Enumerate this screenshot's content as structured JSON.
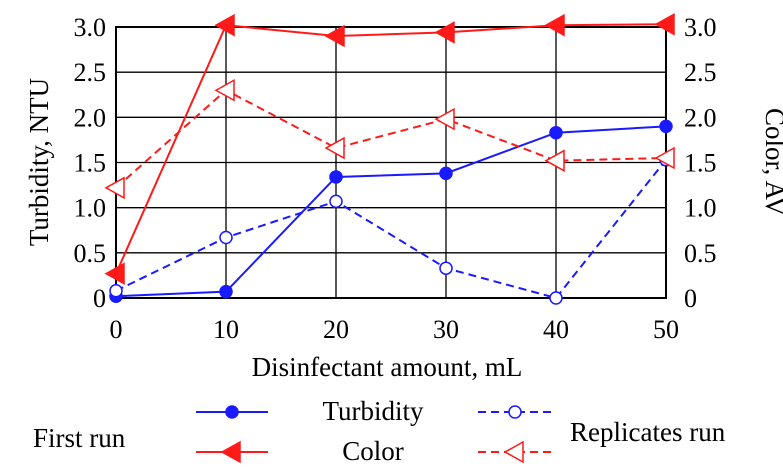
{
  "chart_data": {
    "type": "line",
    "xlabel": "Disinfectant amount, mL",
    "ylabel_left": "Turbidity, NTU",
    "ylabel_right": "Color, AV",
    "x": [
      0,
      10,
      20,
      30,
      40,
      50
    ],
    "x_ticks": [
      "0",
      "10",
      "20",
      "30",
      "40",
      "50"
    ],
    "xlim": [
      0,
      50
    ],
    "y_ticks": [
      "0",
      "0.5",
      "1.0",
      "1.5",
      "2.0",
      "2.5",
      "3.0"
    ],
    "y_tick_values": [
      0,
      0.5,
      1.0,
      1.5,
      2.0,
      2.5,
      3.0
    ],
    "ylim_left": [
      0,
      3.0
    ],
    "ylim_right": [
      0,
      3.0
    ],
    "grid": true,
    "series": [
      {
        "id": "turb_first",
        "axis": "left",
        "color": "#1a1aff",
        "dash": "solid",
        "marker": "circle-filled",
        "values": [
          0.02,
          0.07,
          1.34,
          1.38,
          1.83,
          1.9
        ]
      },
      {
        "id": "color_first",
        "axis": "right",
        "color": "#ff1a1a",
        "dash": "solid",
        "marker": "triangle-left-filled",
        "values": [
          0.27,
          3.02,
          2.9,
          2.94,
          3.02,
          3.03
        ]
      },
      {
        "id": "turb_rep",
        "axis": "left",
        "color": "#1a1aff",
        "dash": "dashed",
        "marker": "circle-open",
        "values": [
          0.08,
          0.67,
          1.07,
          0.33,
          0.0,
          1.53
        ]
      },
      {
        "id": "color_rep",
        "axis": "right",
        "color": "#ff1a1a",
        "dash": "dashed",
        "marker": "triangle-left-open",
        "values": [
          1.22,
          2.3,
          1.66,
          1.98,
          1.52,
          1.55
        ]
      }
    ],
    "legend": {
      "placement": "bottom",
      "row_labels": [
        "First run",
        "Replicates run"
      ],
      "column_labels": [
        "Turbidity",
        "Color"
      ]
    }
  }
}
